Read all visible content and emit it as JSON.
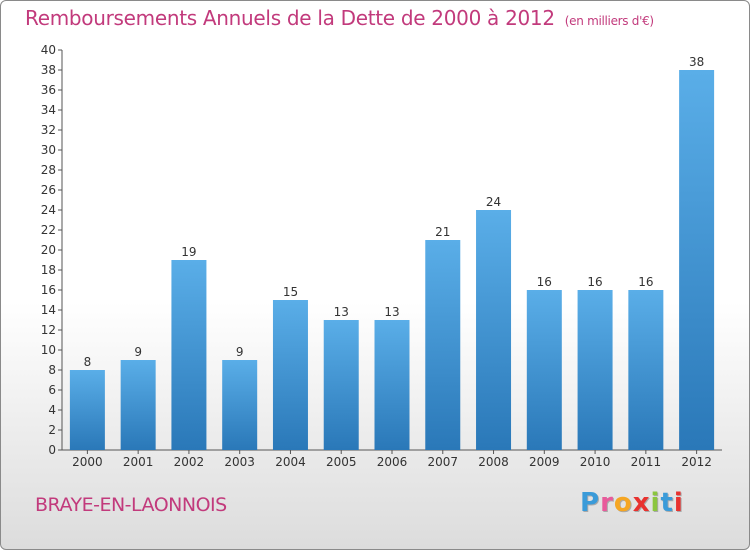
{
  "header": {
    "title": "Remboursements Annuels de la Dette de 2000 à 2012",
    "unit": "(en milliers d'€)"
  },
  "footer": {
    "town": "BRAYE-EN-LAONNOIS",
    "logo": "Proxiti",
    "logo_colors": [
      "#3a9bd9",
      "#e85b9b",
      "#f5a623",
      "#e8322f",
      "#8cc63f",
      "#3a9bd9",
      "#e8322f"
    ]
  },
  "chart_data": {
    "type": "bar",
    "categories": [
      "2000",
      "2001",
      "2002",
      "2003",
      "2004",
      "2005",
      "2006",
      "2007",
      "2008",
      "2009",
      "2010",
      "2011",
      "2012"
    ],
    "values": [
      8,
      9,
      19,
      9,
      15,
      13,
      13,
      21,
      24,
      16,
      16,
      16,
      38
    ],
    "title": "Remboursements Annuels de la Dette de 2000 à 2012",
    "ylim": [
      0,
      40
    ],
    "yticks": [
      0,
      2,
      4,
      6,
      8,
      10,
      12,
      14,
      16,
      18,
      20,
      22,
      24,
      26,
      28,
      30,
      32,
      34,
      36,
      38,
      40
    ],
    "bar_color_top": "#5aaee8",
    "bar_color_bottom": "#2a78b8",
    "grid": false
  }
}
